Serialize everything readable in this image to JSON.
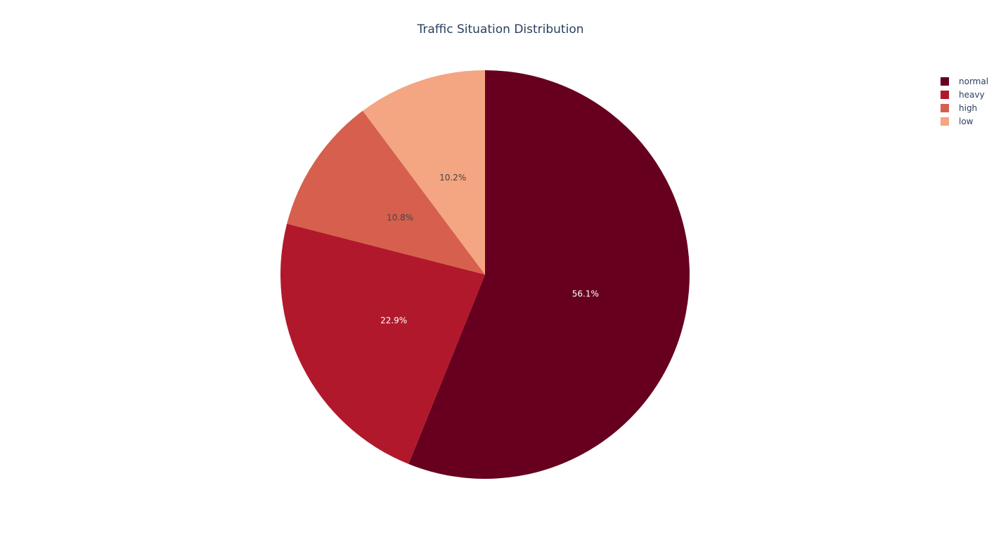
{
  "chart_data": {
    "type": "pie",
    "title": "Traffic Situation Distribution",
    "categories": [
      "normal",
      "heavy",
      "high",
      "low"
    ],
    "values": [
      56.1,
      22.9,
      10.8,
      10.2
    ],
    "labels": [
      "56.1%",
      "22.9%",
      "10.8%",
      "10.2%"
    ],
    "colors": [
      "#67001f",
      "#b2182b",
      "#d6604d",
      "#f4a582"
    ],
    "label_colors": [
      "#ffffff",
      "#ffffff",
      "#444444",
      "#444444"
    ],
    "direction": "clockwise",
    "legend_position": "top-right"
  }
}
